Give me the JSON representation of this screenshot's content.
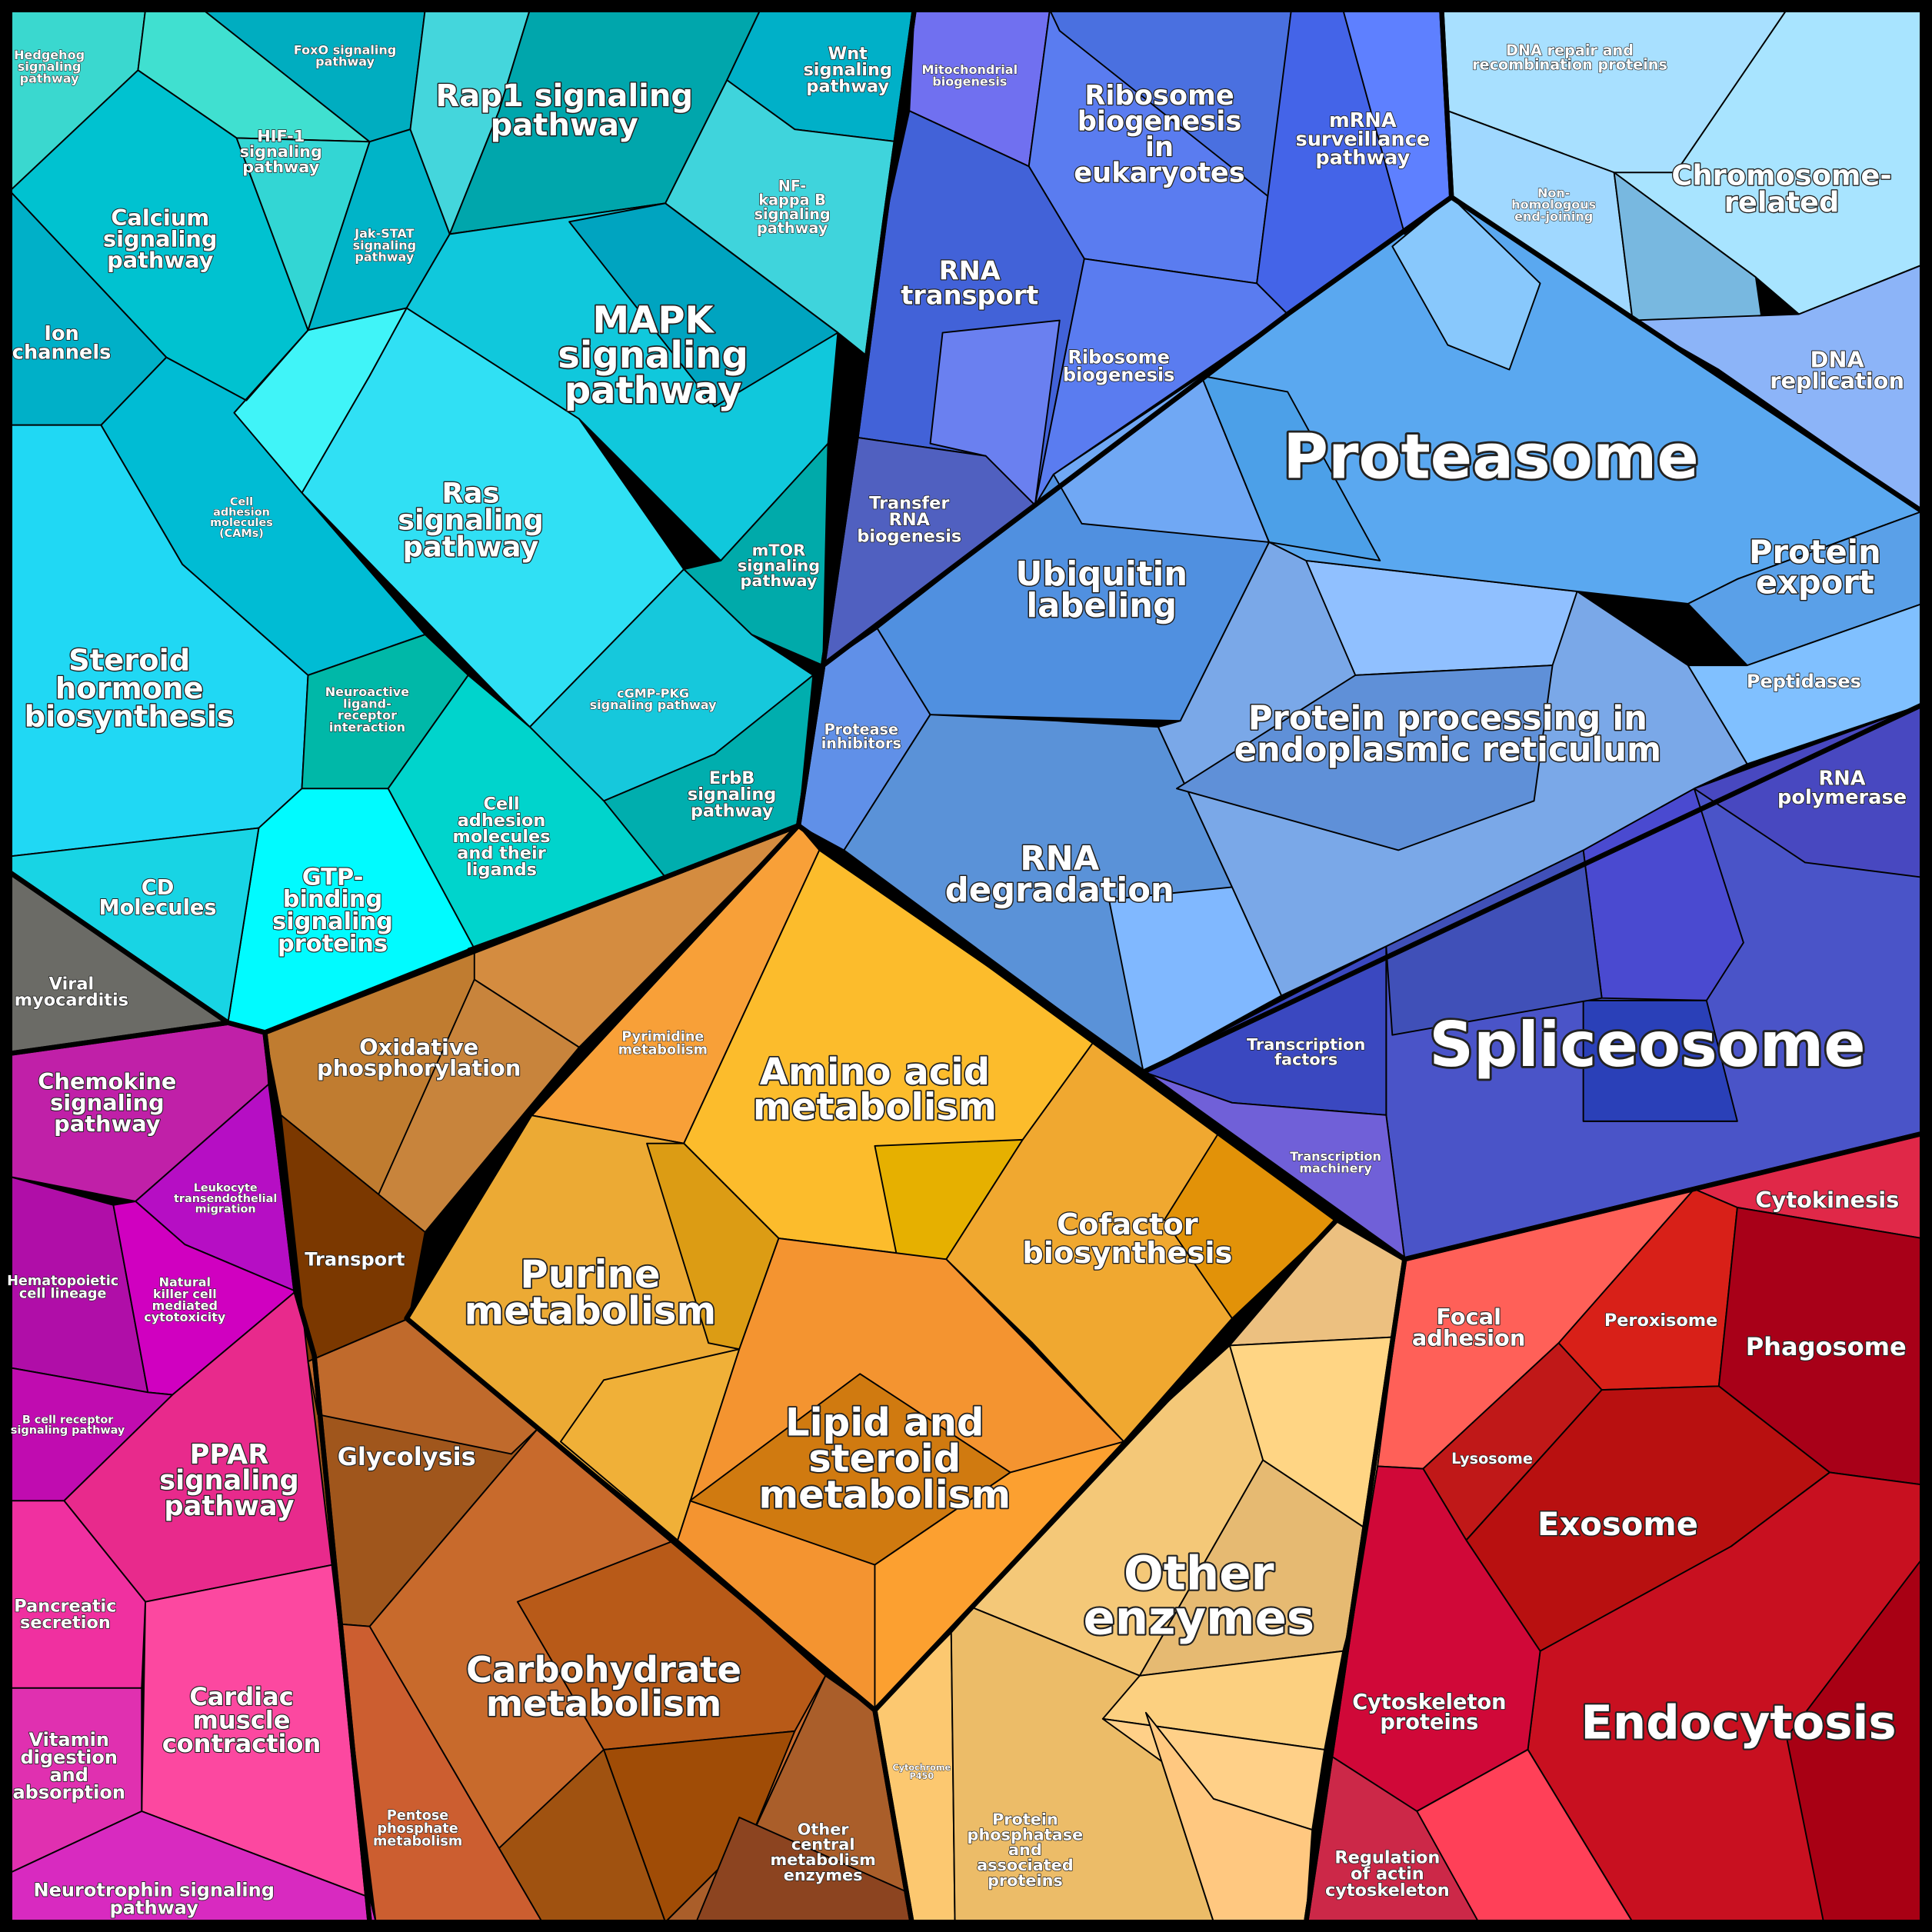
{
  "group_colors": {
    "signaling": "#00c4d4",
    "infection": "#6b6b66",
    "immune_organismal": "#d020b0",
    "energy_carbohydrate": "#c0662a",
    "metabolism": "#f8a838",
    "other_enzymes": "#f4c878",
    "cellular_processes": "#c81020",
    "transcription_splicing": "#4a54c8",
    "protein_fate": "#5aa8f0",
    "rna_processing": "#5a7cf0",
    "dna": "#a8e0ff"
  },
  "labels": {
    "hedgehog": [
      "Hedgehog",
      "signaling",
      "pathway"
    ],
    "foxo": [
      "FoxO signaling",
      "pathway"
    ],
    "rap1": [
      "Rap1 signaling",
      "pathway"
    ],
    "wnt": [
      "Wnt",
      "signaling",
      "pathway"
    ],
    "hif1": [
      "HIF-1",
      "signaling",
      "pathway"
    ],
    "calcium": [
      "Calcium",
      "signaling",
      "pathway"
    ],
    "jakstat": [
      "Jak-STAT",
      "signaling",
      "pathway"
    ],
    "nfkb": [
      "NF-",
      "kappa B",
      "signaling",
      "pathway"
    ],
    "mapk": [
      "MAPK",
      "signaling",
      "pathway"
    ],
    "ion": [
      "Ion",
      "channels"
    ],
    "ras": [
      "Ras",
      "signaling",
      "pathway"
    ],
    "cams": [
      "Cell",
      "adhesion",
      "molecules",
      "(CAMs)"
    ],
    "mtor": [
      "mTOR",
      "signaling",
      "pathway"
    ],
    "steroid": [
      "Steroid",
      "hormone",
      "biosynthesis"
    ],
    "neuroactive": [
      "Neuroactive",
      "ligand-",
      "receptor",
      "interaction"
    ],
    "cgmp": [
      "cGMP-PKG",
      "signaling pathway"
    ],
    "erbb": [
      "ErbB",
      "signaling",
      "pathway"
    ],
    "celladh": [
      "Cell",
      "adhesion",
      "molecules",
      "and their",
      "ligands"
    ],
    "gtp": [
      "GTP-",
      "binding",
      "signaling",
      "proteins"
    ],
    "cd": [
      "CD",
      "Molecules"
    ],
    "viral": [
      "Viral",
      "myocarditis"
    ],
    "chemokine": [
      "Chemokine",
      "signaling",
      "pathway"
    ],
    "leukocyte": [
      "Leukocyte",
      "transendothelial",
      "migration"
    ],
    "hema": [
      "Hematopoietic",
      "cell lineage"
    ],
    "nk": [
      "Natural",
      "killer cell",
      "mediated",
      "cytotoxicity"
    ],
    "bcell": [
      "B cell receptor",
      "signaling pathway"
    ],
    "ppar": [
      "PPAR",
      "signaling",
      "pathway"
    ],
    "pancreatic": [
      "Pancreatic",
      "secretion"
    ],
    "cardiac": [
      "Cardiac",
      "muscle",
      "contraction"
    ],
    "vitamin": [
      "Vitamin",
      "digestion",
      "and",
      "absorption"
    ],
    "neurotrophin": [
      "Neurotrophin signaling",
      "pathway"
    ],
    "oxidative": [
      "Oxidative",
      "phosphorylation"
    ],
    "transport": [
      "Transport"
    ],
    "pyrimidine": [
      "Pyrimidine",
      "metabolism"
    ],
    "amino": [
      "Amino acid",
      "metabolism"
    ],
    "cofactor": [
      "Cofactor",
      "biosynthesis"
    ],
    "purine": [
      "Purine",
      "metabolism"
    ],
    "glycolysis": [
      "Glycolysis"
    ],
    "lipid": [
      "Lipid and",
      "steroid",
      "metabolism"
    ],
    "carbo": [
      "Carbohydrate",
      "metabolism"
    ],
    "pentose": [
      "Pentose",
      "phosphate",
      "metabolism"
    ],
    "othercentral": [
      "Other",
      "central",
      "metabolism",
      "enzymes"
    ],
    "otherenz": [
      "Other",
      "enzymes"
    ],
    "cyp450": [
      "Cytochrome",
      "P450"
    ],
    "phosph": [
      "Protein",
      "phosphatase",
      "and",
      "associated",
      "proteins"
    ],
    "mito": [
      "Mitochondrial",
      "biogenesis"
    ],
    "ribeuk": [
      "Ribosome",
      "biogenesis",
      "in",
      "eukaryotes"
    ],
    "mrna": [
      "mRNA",
      "surveillance",
      "pathway"
    ],
    "rnatransport": [
      "RNA",
      "transport"
    ],
    "ribbio": [
      "Ribosome",
      "biogenesis"
    ],
    "trna": [
      "Transfer",
      "RNA",
      "biogenesis"
    ],
    "dnarepair": [
      "DNA repair and",
      "recombination proteins"
    ],
    "nonhom": [
      "Non-",
      "homologous",
      "end-joining"
    ],
    "chromosome": [
      "Chromosome-",
      "related"
    ],
    "dnarep": [
      "DNA",
      "replication"
    ],
    "proteasome": [
      "Proteasome"
    ],
    "ubiquitin": [
      "Ubiquitin",
      "labeling"
    ],
    "proteinexport": [
      "Protein",
      "export"
    ],
    "peptidases": [
      "Peptidases"
    ],
    "protproc": [
      "Protein processing in",
      "endoplasmic reticulum"
    ],
    "protinhib": [
      "Protease",
      "inhibitors"
    ],
    "rnadeg": [
      "RNA",
      "degradation"
    ],
    "rnapol": [
      "RNA",
      "polymerase"
    ],
    "tf": [
      "Transcription",
      "factors"
    ],
    "spliceosome": [
      "Spliceosome"
    ],
    "tmach": [
      "Transcription",
      "machinery"
    ],
    "cytokinesis": [
      "Cytokinesis"
    ],
    "focal": [
      "Focal",
      "adhesion"
    ],
    "peroxisome": [
      "Peroxisome"
    ],
    "phagosome": [
      "Phagosome"
    ],
    "lysosome": [
      "Lysosome"
    ],
    "exosome": [
      "Exosome"
    ],
    "endocytosis": [
      "Endocytosis"
    ],
    "cytoskeleton": [
      "Cytoskeleton",
      "proteins"
    ],
    "regulation": [
      "Regulation",
      "of actin",
      "cytoskeleton"
    ]
  }
}
